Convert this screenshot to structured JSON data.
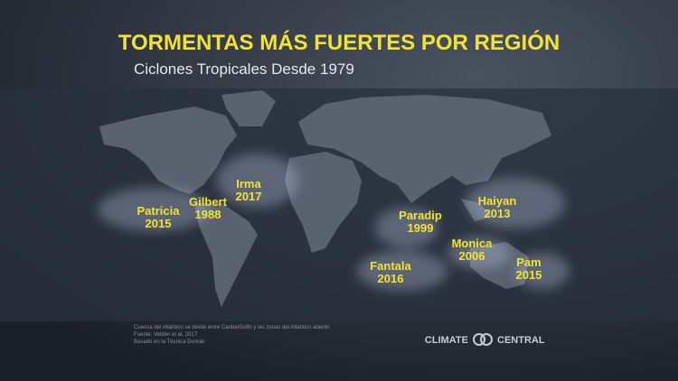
{
  "header": {
    "title": "TORMENTAS MÁS FUERTES POR REGIÓN",
    "subtitle": "Ciclones Tropicales Desde 1979"
  },
  "storms": [
    {
      "name": "Patricia",
      "year": 2015
    },
    {
      "name": "Gilbert",
      "year": 1988
    },
    {
      "name": "Irma",
      "year": 2017
    },
    {
      "name": "Paradip",
      "year": 1999
    },
    {
      "name": "Haiyan",
      "year": 2013
    },
    {
      "name": "Monica",
      "year": 2006
    },
    {
      "name": "Fantala",
      "year": 2016
    },
    {
      "name": "Pam",
      "year": 2015
    }
  ],
  "footnotes": [
    "Cuenca del Atlántico se divide entre Caribe/Golfo y las zonas del Atlántico abierto",
    "Fuente: Velden et al. 2017",
    "Basado en la Técnica Dvorak"
  ],
  "logo": {
    "left": "CLIMATE",
    "right": "CENTRAL"
  }
}
